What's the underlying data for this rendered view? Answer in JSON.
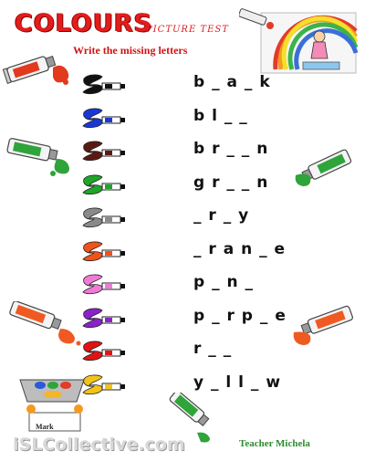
{
  "header": {
    "title": "COLOURS",
    "subtitle": "PICTURE TEST",
    "instruction": "Write the missing letters"
  },
  "items": [
    {
      "color": "#111111",
      "puzzle": "b _ a _ k"
    },
    {
      "color": "#1a37d6",
      "puzzle": "b l _ _"
    },
    {
      "color": "#5a1a12",
      "puzzle": "b r _ _ n"
    },
    {
      "color": "#1fa52a",
      "puzzle": "g r _ _ n"
    },
    {
      "color": "#8a8a8a",
      "puzzle": "_ r _ y"
    },
    {
      "color": "#f0521b",
      "puzzle": "_ r a n _ e"
    },
    {
      "color": "#f07ad6",
      "puzzle": "p _ n _"
    },
    {
      "color": "#8a22c8",
      "puzzle": "p _ r p _ e"
    },
    {
      "color": "#e01414",
      "puzzle": "r _ _"
    },
    {
      "color": "#f2c318",
      "puzzle": "y _ l l _ w"
    }
  ],
  "footer": {
    "mark_label": "Mark",
    "watermark": "iSLCollective.com",
    "teacher": "Teacher Michela"
  }
}
